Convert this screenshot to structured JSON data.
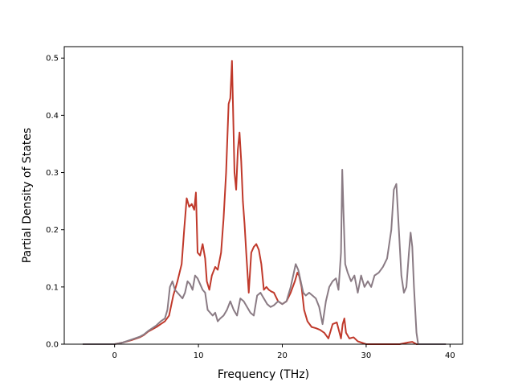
{
  "chart_data": {
    "type": "line",
    "title": "",
    "xlabel": "Frequency (THz)",
    "ylabel": "Partial Density of States",
    "xlim": [
      -6,
      41.5
    ],
    "ylim": [
      0,
      0.52
    ],
    "x_ticks": [
      0,
      10,
      20,
      30,
      40
    ],
    "y_ticks": [
      0.0,
      0.1,
      0.2,
      0.3,
      0.4,
      0.5
    ],
    "x_tick_labels": [
      "0",
      "10",
      "20",
      "30",
      "40"
    ],
    "y_tick_labels": [
      "0.0",
      "0.1",
      "0.2",
      "0.3",
      "0.4",
      "0.5"
    ],
    "grid": false,
    "series": [
      {
        "color": "#c0392b",
        "x": [
          -3.8,
          0.0,
          1.0,
          2.0,
          3.0,
          3.5,
          4.0,
          4.5,
          5.0,
          5.5,
          6.0,
          6.5,
          7.0,
          7.5,
          8.0,
          8.3,
          8.6,
          8.9,
          9.2,
          9.5,
          9.7,
          9.9,
          10.2,
          10.5,
          10.8,
          11.0,
          11.3,
          11.6,
          12.0,
          12.3,
          12.7,
          13.0,
          13.3,
          13.6,
          13.8,
          14.0,
          14.3,
          14.5,
          14.7,
          14.9,
          15.1,
          15.3,
          15.5,
          15.7,
          16.0,
          16.3,
          16.6,
          16.9,
          17.2,
          17.5,
          17.8,
          18.1,
          18.4,
          18.7,
          19.0,
          19.5,
          20.0,
          20.5,
          21.0,
          21.5,
          21.8,
          22.0,
          22.3,
          22.6,
          23.0,
          23.5,
          24.0,
          24.5,
          25.0,
          25.5,
          26.0,
          26.5,
          27.0,
          27.2,
          27.4,
          27.6,
          28.0,
          28.5,
          29.0,
          30.0,
          31.0,
          32.0,
          33.0,
          34.0,
          35.0,
          35.5,
          36.0,
          37.0,
          39.5
        ],
        "y": [
          0.0,
          0.0,
          0.003,
          0.007,
          0.012,
          0.016,
          0.022,
          0.026,
          0.03,
          0.035,
          0.04,
          0.05,
          0.085,
          0.11,
          0.14,
          0.2,
          0.255,
          0.24,
          0.245,
          0.235,
          0.265,
          0.16,
          0.155,
          0.175,
          0.15,
          0.11,
          0.095,
          0.12,
          0.135,
          0.13,
          0.16,
          0.22,
          0.3,
          0.42,
          0.43,
          0.495,
          0.3,
          0.27,
          0.34,
          0.37,
          0.32,
          0.25,
          0.21,
          0.16,
          0.09,
          0.16,
          0.17,
          0.175,
          0.165,
          0.14,
          0.095,
          0.1,
          0.095,
          0.092,
          0.09,
          0.075,
          0.07,
          0.075,
          0.09,
          0.11,
          0.125,
          0.12,
          0.1,
          0.06,
          0.04,
          0.03,
          0.028,
          0.025,
          0.02,
          0.01,
          0.035,
          0.038,
          0.01,
          0.035,
          0.045,
          0.02,
          0.01,
          0.012,
          0.005,
          0.0,
          0.0,
          0.0,
          0.0,
          0.0,
          0.003,
          0.004,
          0.0,
          0.0,
          0.0
        ]
      },
      {
        "color": "#8a7b84",
        "x": [
          -3.8,
          0.0,
          1.0,
          2.0,
          3.0,
          3.5,
          4.0,
          4.5,
          5.0,
          5.5,
          6.0,
          6.3,
          6.6,
          6.9,
          7.2,
          7.5,
          7.8,
          8.1,
          8.4,
          8.7,
          9.0,
          9.3,
          9.6,
          9.9,
          10.2,
          10.5,
          10.8,
          11.1,
          11.4,
          11.7,
          12.0,
          12.3,
          12.6,
          13.0,
          13.4,
          13.8,
          14.2,
          14.6,
          15.0,
          15.4,
          15.8,
          16.2,
          16.6,
          17.0,
          17.4,
          17.8,
          18.2,
          18.6,
          19.0,
          19.5,
          20.0,
          20.5,
          21.0,
          21.3,
          21.6,
          21.9,
          22.2,
          22.5,
          22.8,
          23.2,
          23.6,
          24.0,
          24.4,
          24.8,
          25.2,
          25.6,
          26.0,
          26.4,
          26.7,
          27.0,
          27.15,
          27.3,
          27.5,
          27.8,
          28.2,
          28.6,
          29.0,
          29.4,
          29.8,
          30.2,
          30.6,
          31.0,
          31.5,
          32.0,
          32.5,
          33.0,
          33.3,
          33.6,
          33.9,
          34.2,
          34.5,
          34.8,
          35.1,
          35.3,
          35.5,
          35.7,
          36.0,
          36.2,
          37.0,
          39.5
        ],
        "y": [
          0.0,
          0.0,
          0.003,
          0.008,
          0.013,
          0.017,
          0.023,
          0.028,
          0.033,
          0.04,
          0.045,
          0.06,
          0.1,
          0.11,
          0.095,
          0.09,
          0.085,
          0.08,
          0.09,
          0.11,
          0.105,
          0.095,
          0.12,
          0.115,
          0.105,
          0.095,
          0.09,
          0.06,
          0.055,
          0.05,
          0.055,
          0.04,
          0.045,
          0.05,
          0.06,
          0.075,
          0.06,
          0.05,
          0.08,
          0.075,
          0.065,
          0.055,
          0.05,
          0.085,
          0.09,
          0.08,
          0.07,
          0.065,
          0.068,
          0.075,
          0.07,
          0.075,
          0.1,
          0.12,
          0.14,
          0.13,
          0.11,
          0.09,
          0.085,
          0.09,
          0.085,
          0.08,
          0.065,
          0.035,
          0.075,
          0.1,
          0.11,
          0.115,
          0.095,
          0.16,
          0.305,
          0.23,
          0.14,
          0.125,
          0.11,
          0.12,
          0.09,
          0.12,
          0.1,
          0.11,
          0.1,
          0.12,
          0.125,
          0.135,
          0.15,
          0.2,
          0.27,
          0.28,
          0.2,
          0.12,
          0.09,
          0.1,
          0.16,
          0.195,
          0.17,
          0.1,
          0.02,
          0.0,
          0.0,
          0.0
        ]
      }
    ]
  }
}
